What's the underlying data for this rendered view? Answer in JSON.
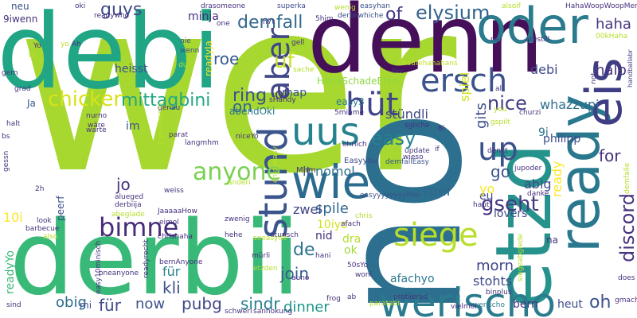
{
  "palette": {
    "dark_purple": "#440154",
    "indigo": "#482878",
    "blue": "#3e4a89",
    "steel": "#31688e",
    "teal_blue": "#26828e",
    "teal": "#1f9e89",
    "green": "#35b779",
    "light_green": "#6ece58",
    "lime": "#b5de2b",
    "yellow": "#e8d10d"
  },
  "words": [
    {
      "text": "wer",
      "color": "#a7d830"
    },
    {
      "text": "no",
      "color": "#2c6f8e"
    },
    {
      "text": "debi",
      "color": "#21a685"
    },
    {
      "text": "derbii",
      "color": "#38b977"
    },
    {
      "text": "denn",
      "color": "#450f5a"
    },
    {
      "text": "etzd",
      "color": "#26928c"
    },
    {
      "text": "ready",
      "color": "#2a788e"
    },
    {
      "text": "eis",
      "color": "#3f3e85"
    },
    {
      "text": "oder",
      "color": "#2b7b8e"
    },
    {
      "text": "wie",
      "color": "#2a6b8e"
    },
    {
      "text": "werischo",
      "color": "#2b7b8e"
    },
    {
      "text": "siege",
      "color": "#b8de29"
    },
    {
      "text": "stund",
      "color": "#3a548c"
    },
    {
      "text": "uus",
      "color": "#26828e"
    },
    {
      "text": "ersch",
      "color": "#3a538b"
    },
    {
      "text": "hüt",
      "color": "#414487"
    },
    {
      "text": "aber",
      "color": "#404688"
    },
    {
      "text": "up",
      "color": "#3b518b"
    },
    {
      "text": "bimne",
      "color": "#472c7a"
    },
    {
      "text": "anyone",
      "color": "#7ad151"
    },
    {
      "text": "chicken",
      "color": "#d8e219"
    },
    {
      "text": "of",
      "color": "#453781"
    },
    {
      "text": "elysium",
      "color": "#33638d"
    },
    {
      "text": "guys",
      "color": "#3e4989"
    },
    {
      "text": "demfall",
      "color": "#31688e"
    },
    {
      "text": "discord",
      "color": "#46327e"
    },
    {
      "text": "werischo",
      "color": "#2b7b8e"
    },
    {
      "text": "uf",
      "color": "#c8e020"
    },
    {
      "text": "ring",
      "color": "#3b528b"
    },
    {
      "text": "nice",
      "color": "#433e85"
    },
    {
      "text": "mittagbini",
      "color": "#22a785"
    },
    {
      "text": "gseht",
      "color": "#453882"
    },
    {
      "text": "de",
      "color": "#2c728e"
    },
    {
      "text": "easy",
      "color": "#26828e"
    },
    {
      "text": "of",
      "color": "#443983"
    },
    {
      "text": "on",
      "color": "#31688e"
    },
    {
      "text": "roe",
      "color": "#375b8d"
    },
    {
      "text": "haha",
      "color": "#46337f"
    },
    {
      "text": "halb",
      "color": "#46327e"
    },
    {
      "text": "jo",
      "color": "#46337f"
    },
    {
      "text": "join",
      "color": "#365c8d"
    },
    {
      "text": "sindr",
      "color": "#27808e"
    },
    {
      "text": "pubg",
      "color": "#3f4788"
    },
    {
      "text": "kli",
      "color": "#3c4f8a"
    },
    {
      "text": "dinner",
      "color": "#1f968b"
    },
    {
      "text": "nomol",
      "color": "#2e6f8e"
    },
    {
      "text": "it",
      "color": "#3b528b"
    },
    {
      "text": "for",
      "color": "#46307e"
    },
    {
      "text": "go",
      "color": "#3a548c"
    },
    {
      "text": "für",
      "color": "#3e4c8a"
    },
    {
      "text": "now",
      "color": "#3b528b"
    },
    {
      "text": "morn",
      "color": "#404588"
    },
    {
      "text": "stohts",
      "color": "#3e4989"
    },
    {
      "text": "oh",
      "color": "#3b528b"
    },
    {
      "text": "bern",
      "color": "#46327e"
    },
    {
      "text": "heut",
      "color": "#3d4d8a"
    },
    {
      "text": "spile",
      "color": "#31688e"
    },
    {
      "text": "zwei",
      "color": "#404588"
    },
    {
      "text": "obig",
      "color": "#2e6e8e"
    },
    {
      "text": "für",
      "color": "#25848e"
    },
    {
      "text": "mer",
      "color": "#31688e"
    },
    {
      "text": "eu",
      "color": "#414487"
    },
    {
      "text": "yo",
      "color": "#fde725"
    },
    {
      "text": "abig",
      "color": "#3e4a89"
    },
    {
      "text": "gits",
      "color": "#3d4d8a"
    },
    {
      "text": "whazzupi",
      "color": "#2e6e8e"
    },
    {
      "text": "spiel",
      "color": "#d2e21b"
    },
    {
      "text": "stündli",
      "color": "#404688"
    },
    {
      "text": "map",
      "color": "#3b528b"
    },
    {
      "text": "ready",
      "color": "#fde725"
    },
    {
      "text": "10i",
      "color": "#fde725"
    },
    {
      "text": "10iyo",
      "color": "#d2e21b"
    },
    {
      "text": "9i",
      "color": "#2c728e"
    },
    {
      "text": "philipp",
      "color": "#3e4c8a"
    },
    {
      "text": "afachyo",
      "color": "#2a788e"
    },
    {
      "text": "heisst",
      "color": "#3b528b"
    },
    {
      "text": "debi",
      "color": "#3e4989"
    },
    {
      "text": "minja",
      "color": "#472d7b"
    },
    {
      "text": "9iwenn",
      "color": "#46327e"
    },
    {
      "text": "neu",
      "color": "#3c4f8a"
    },
    {
      "text": "Ja",
      "color": "#365c8d"
    },
    {
      "text": "im",
      "color": "#3b528b"
    },
    {
      "text": "nid",
      "color": "#46307e"
    },
    {
      "text": "dra",
      "color": "#b5de2b"
    },
    {
      "text": "ok",
      "color": "#a0da39"
    },
    {
      "text": "na",
      "color": "#46327e"
    },
    {
      "text": "mi",
      "color": "#3b528b"
    },
    {
      "text": "readyYo",
      "color": "#38b977"
    },
    {
      "text": "peerf",
      "color": "#3b528b"
    },
    {
      "text": "easy3",
      "color": "#2a788e"
    },
    {
      "text": "abendOki",
      "color": "#2a788e"
    },
    {
      "text": "HahaSchadeEtzd",
      "color": "#90d743"
    },
    {
      "text": "Mhm",
      "color": "#46327e"
    },
    {
      "text": "Easyyou",
      "color": "#3e4a89"
    },
    {
      "text": "lovers",
      "color": "#3e4c8a"
    },
    {
      "text": "readyJa",
      "color": "#fde725"
    },
    {
      "text": "chaufehahahans",
      "color": "#c0df25"
    },
    {
      "text": "easyhan",
      "color": "#3b528b"
    },
    {
      "text": "readywho",
      "color": "#46327e"
    },
    {
      "text": "superka",
      "color": "#3e4989"
    },
    {
      "text": "drasomeone",
      "color": "#46327e"
    },
    {
      "text": "derbiiwhiche",
      "color": "#3b528b"
    },
    {
      "text": "HahaWoopWoopMer",
      "color": "#46327e"
    },
    {
      "text": "00kHaha",
      "color": "#b5de2b"
    },
    {
      "text": "handballabr",
      "color": "#46327e"
    },
    {
      "text": "arestill",
      "color": "#46327e"
    },
    {
      "text": "alsoif",
      "color": "#b5de2b"
    },
    {
      "text": "sache",
      "color": "#b5de2b"
    },
    {
      "text": "grad",
      "color": "#46327e"
    },
    {
      "text": "gern",
      "color": "#46327e"
    },
    {
      "text": "gell",
      "color": "#46327e"
    },
    {
      "text": "h7t",
      "color": "#46327e"
    },
    {
      "text": "5him",
      "color": "#46327e"
    },
    {
      "text": "wenig",
      "color": "#b5de2b"
    },
    {
      "text": "oki",
      "color": "#46327e"
    },
    {
      "text": "one",
      "color": "#46327e"
    },
    {
      "text": "nie",
      "color": "#3b528b"
    },
    {
      "text": "wenn",
      "color": "#3b528b"
    },
    {
      "text": "du",
      "color": "#b5de2b"
    },
    {
      "text": "Ah",
      "color": "#46327e"
    },
    {
      "text": "to",
      "color": "#b5de2b"
    },
    {
      "text": "Yo",
      "color": "#46327e"
    },
    {
      "text": "like",
      "color": "#46327e"
    },
    {
      "text": "nei",
      "color": "#46327e"
    },
    {
      "text": "all",
      "color": "#46327e"
    },
    {
      "text": "you",
      "color": "#b5de2b"
    },
    {
      "text": "gspilt",
      "color": "#b5de2b"
    },
    {
      "text": "churzi",
      "color": "#46327e"
    },
    {
      "text": "sgliche",
      "color": "#46327e"
    },
    {
      "text": "8i",
      "color": "#46327e"
    },
    {
      "text": "if",
      "color": "#46327e"
    },
    {
      "text": "update",
      "color": "#46327e"
    },
    {
      "text": "wieso",
      "color": "#46327e"
    },
    {
      "text": "denkt",
      "color": "#46327e"
    },
    {
      "text": "jupoder",
      "color": "#46327e"
    },
    {
      "text": "danke",
      "color": "#46327e"
    },
    {
      "text": "demfallEasy",
      "color": "#3b528b"
    },
    {
      "text": "easyyyyyyyyMer",
      "color": "#3b528b"
    },
    {
      "text": "haut",
      "color": "#46327e"
    },
    {
      "text": "chris",
      "color": "#b5de2b"
    },
    {
      "text": "afach",
      "color": "#46327e"
    },
    {
      "text": "zwenig",
      "color": "#46327e"
    },
    {
      "text": "eimol",
      "color": "#46327e"
    },
    {
      "text": "chrishaha",
      "color": "#46327e"
    },
    {
      "text": "JaaaaaHow",
      "color": "#46327e"
    },
    {
      "text": "derbiija",
      "color": "#46327e"
    },
    {
      "text": "alueged",
      "color": "#46327e"
    },
    {
      "text": "abeglade",
      "color": "#b5de2b"
    },
    {
      "text": "look",
      "color": "#46327e"
    },
    {
      "text": "barbecue",
      "color": "#46327e"
    },
    {
      "text": "also",
      "color": "#b5de2b"
    },
    {
      "text": "stunsch",
      "color": "#46327e"
    },
    {
      "text": "hehe",
      "color": "#46327e"
    },
    {
      "text": "soeasylst",
      "color": "#b5de2b"
    },
    {
      "text": "readyrecht",
      "color": "#46327e"
    },
    {
      "text": "mürli",
      "color": "#46327e"
    },
    {
      "text": "hani",
      "color": "#46327e"
    },
    {
      "text": "bernAnyone",
      "color": "#46327e"
    },
    {
      "text": "oneanyone",
      "color": "#46327e"
    },
    {
      "text": "easy10minisch",
      "color": "#46327e"
    },
    {
      "text": "etzden",
      "color": "#b5de2b"
    },
    {
      "text": "auno",
      "color": "#46327e"
    },
    {
      "text": "50sYo",
      "color": "#46327e"
    },
    {
      "text": "woni",
      "color": "#46327e"
    },
    {
      "text": "frog",
      "color": "#46327e"
    },
    {
      "text": "ab",
      "color": "#46327e"
    },
    {
      "text": "paratabr",
      "color": "#b5de2b"
    },
    {
      "text": "vielmol",
      "color": "#46327e"
    },
    {
      "text": "sind",
      "color": "#46327e"
    },
    {
      "text": "schweri",
      "color": "#46327e"
    },
    {
      "text": "sanhokung",
      "color": "#46327e"
    },
    {
      "text": "probiered",
      "color": "#46327e"
    },
    {
      "text": "does",
      "color": "#46327e"
    },
    {
      "text": "gmacht",
      "color": "#46327e"
    },
    {
      "text": "siegeabglede",
      "color": "#b5de2b"
    },
    {
      "text": "binplus",
      "color": "#46327e"
    },
    {
      "text": "not",
      "color": "#46327e"
    },
    {
      "text": "demfalle",
      "color": "#b5de2b"
    },
    {
      "text": "nurno",
      "color": "#46327e"
    },
    {
      "text": "wäre",
      "color": "#46327e"
    },
    {
      "text": "warte",
      "color": "#46327e"
    },
    {
      "text": "halt",
      "color": "#46327e"
    },
    {
      "text": "bs",
      "color": "#46327e"
    },
    {
      "text": "gessn",
      "color": "#46327e"
    },
    {
      "text": "genau",
      "color": "#46327e"
    },
    {
      "text": "sHandy",
      "color": "#46327e"
    },
    {
      "text": "5minme",
      "color": "#46327e"
    },
    {
      "text": "parat",
      "color": "#46327e"
    },
    {
      "text": "langmhm",
      "color": "#46327e"
    },
    {
      "text": "irgendwenn",
      "color": "#b5de2b"
    },
    {
      "text": "niceYo",
      "color": "#46327e"
    },
    {
      "text": "ehrlich",
      "color": "#46327e"
    },
    {
      "text": "enjoyeasy",
      "color": "#b5de2b"
    },
    {
      "text": "anderi",
      "color": "#b5de2b"
    },
    {
      "text": "weiss",
      "color": "#46327e"
    },
    {
      "text": "2h",
      "color": "#46327e"
    },
    {
      "text": "yo",
      "color": "#b5de2b"
    }
  ]
}
